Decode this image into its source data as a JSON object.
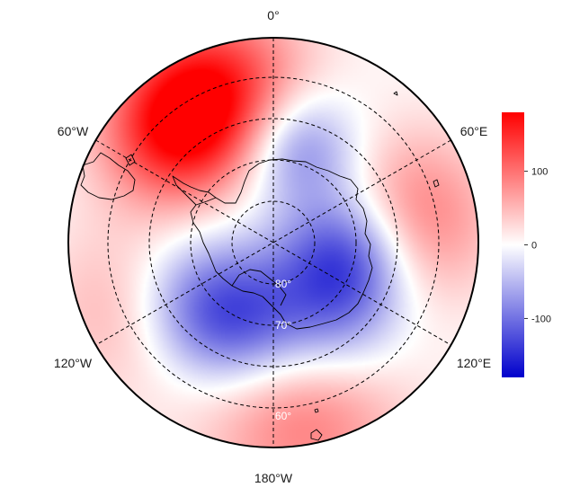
{
  "map": {
    "projection": "south-polar-stereographic",
    "colormap": {
      "low": "#0000CC",
      "mid": "#FFFFFF",
      "high": "#FF0000"
    },
    "value_range": [
      -180,
      180
    ],
    "longitude_labels": [
      "0°",
      "60°E",
      "120°E",
      "180°W",
      "120°W",
      "60°W"
    ],
    "latitude_labels": [
      "80°",
      "70°",
      "60°"
    ],
    "colorbar": {
      "ticks": [
        {
          "value": 100,
          "label": "100"
        },
        {
          "value": 0,
          "label": "0"
        },
        {
          "value": -100,
          "label": "-100"
        }
      ]
    },
    "field_features": [
      {
        "name": "positive-anomaly-weddell",
        "lat": -54,
        "lon": -38,
        "value": 175,
        "spread_deg": 13
      },
      {
        "name": "positive-anomaly-atlantic-sector",
        "lat": -48,
        "lon": -15,
        "value": 90,
        "spread_deg": 14
      },
      {
        "name": "positive-anomaly-indian-east",
        "lat": -55,
        "lon": 80,
        "value": 95,
        "spread_deg": 14
      },
      {
        "name": "positive-anomaly-south-pacific",
        "lat": -47,
        "lon": 170,
        "value": 95,
        "spread_deg": 16
      },
      {
        "name": "positive-anomaly-southeast-pacific",
        "lat": -50,
        "lon": -115,
        "value": 60,
        "spread_deg": 14
      },
      {
        "name": "negative-anomaly-east-antarctica",
        "lat": -72,
        "lon": 100,
        "value": -130,
        "spread_deg": 11
      },
      {
        "name": "negative-anomaly-dronning-maud",
        "lat": -66,
        "lon": 15,
        "value": -95,
        "spread_deg": 10
      },
      {
        "name": "negative-anomaly-ross-sea",
        "lat": -70,
        "lon": -160,
        "value": -95,
        "spread_deg": 12
      },
      {
        "name": "negative-anomaly-amundsen",
        "lat": -65,
        "lon": -130,
        "value": -80,
        "spread_deg": 12
      },
      {
        "name": "negative-anomaly-wilkes",
        "lat": -65,
        "lon": 140,
        "value": -70,
        "spread_deg": 12
      }
    ]
  }
}
